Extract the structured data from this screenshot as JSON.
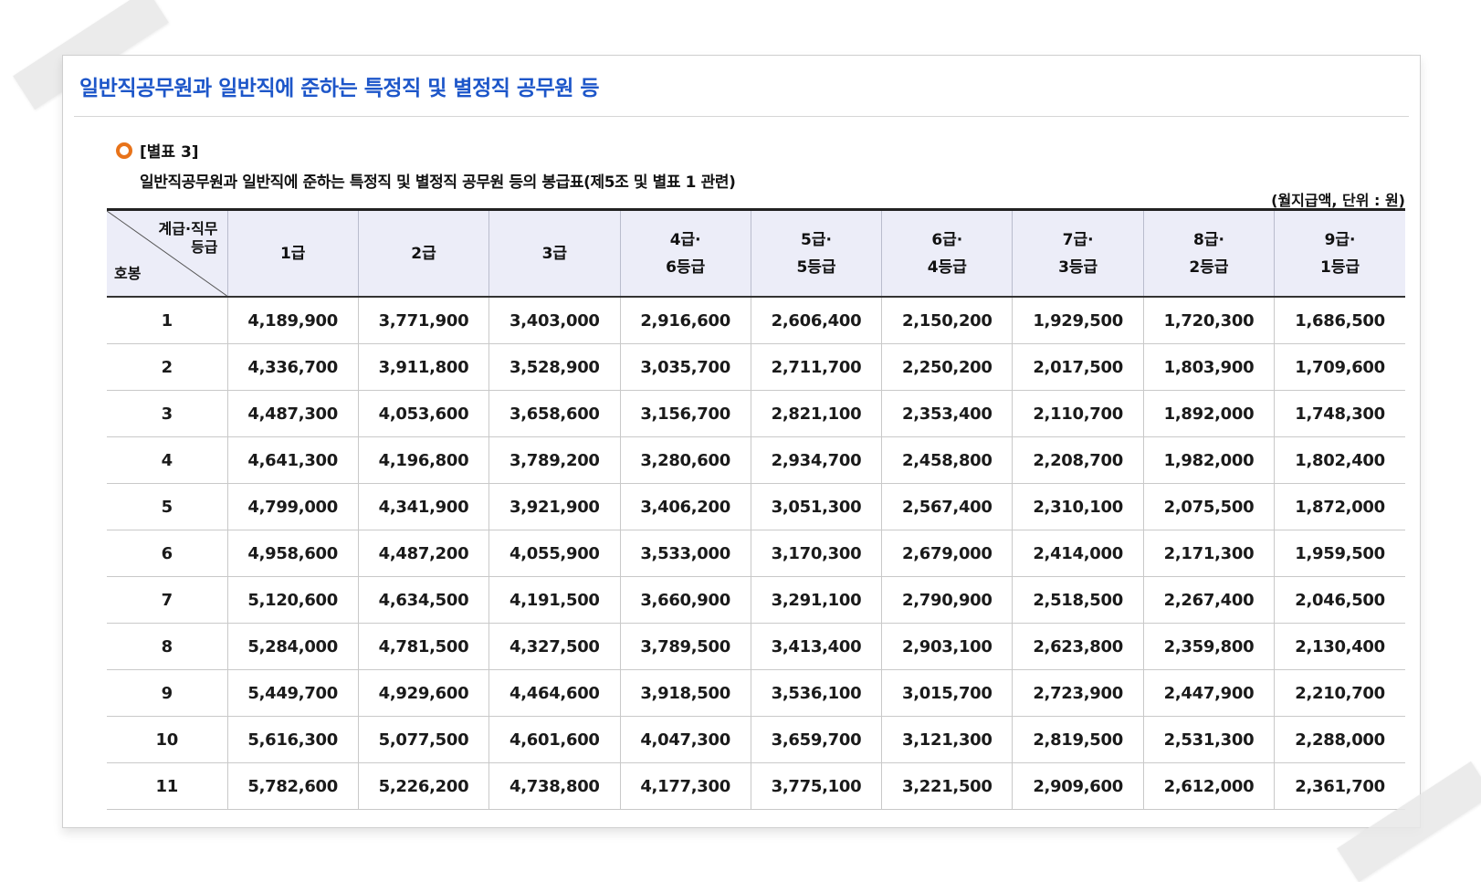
{
  "page_title": "일반직공무원과 일반직에 준하는 특정직 및 별정직 공무원 등",
  "table_label": "[별표 3]",
  "table_subtitle": "일반직공무원과 일반직에 준하는 특정직 및 별정직 공무원 등의 봉급표(제5조 및 별표 1 관련)",
  "unit_note": "(월지급액, 단위 : 원)",
  "corner": {
    "top_line1": "계급·직무",
    "top_line2": "등급",
    "bottom": "호봉"
  },
  "columns": [
    {
      "line1": "1급",
      "line2": ""
    },
    {
      "line1": "2급",
      "line2": ""
    },
    {
      "line1": "3급",
      "line2": ""
    },
    {
      "line1": "4급·",
      "line2": "6등급"
    },
    {
      "line1": "5급·",
      "line2": "5등급"
    },
    {
      "line1": "6급·",
      "line2": "4등급"
    },
    {
      "line1": "7급·",
      "line2": "3등급"
    },
    {
      "line1": "8급·",
      "line2": "2등급"
    },
    {
      "line1": "9급·",
      "line2": "1등급"
    }
  ],
  "rows": [
    {
      "step": "1",
      "values": [
        "4,189,900",
        "3,771,900",
        "3,403,000",
        "2,916,600",
        "2,606,400",
        "2,150,200",
        "1,929,500",
        "1,720,300",
        "1,686,500"
      ]
    },
    {
      "step": "2",
      "values": [
        "4,336,700",
        "3,911,800",
        "3,528,900",
        "3,035,700",
        "2,711,700",
        "2,250,200",
        "2,017,500",
        "1,803,900",
        "1,709,600"
      ]
    },
    {
      "step": "3",
      "values": [
        "4,487,300",
        "4,053,600",
        "3,658,600",
        "3,156,700",
        "2,821,100",
        "2,353,400",
        "2,110,700",
        "1,892,000",
        "1,748,300"
      ]
    },
    {
      "step": "4",
      "values": [
        "4,641,300",
        "4,196,800",
        "3,789,200",
        "3,280,600",
        "2,934,700",
        "2,458,800",
        "2,208,700",
        "1,982,000",
        "1,802,400"
      ]
    },
    {
      "step": "5",
      "values": [
        "4,799,000",
        "4,341,900",
        "3,921,900",
        "3,406,200",
        "3,051,300",
        "2,567,400",
        "2,310,100",
        "2,075,500",
        "1,872,000"
      ]
    },
    {
      "step": "6",
      "values": [
        "4,958,600",
        "4,487,200",
        "4,055,900",
        "3,533,000",
        "3,170,300",
        "2,679,000",
        "2,414,000",
        "2,171,300",
        "1,959,500"
      ]
    },
    {
      "step": "7",
      "values": [
        "5,120,600",
        "4,634,500",
        "4,191,500",
        "3,660,900",
        "3,291,100",
        "2,790,900",
        "2,518,500",
        "2,267,400",
        "2,046,500"
      ]
    },
    {
      "step": "8",
      "values": [
        "5,284,000",
        "4,781,500",
        "4,327,500",
        "3,789,500",
        "3,413,400",
        "2,903,100",
        "2,623,800",
        "2,359,800",
        "2,130,400"
      ]
    },
    {
      "step": "9",
      "values": [
        "5,449,700",
        "4,929,600",
        "4,464,600",
        "3,918,500",
        "3,536,100",
        "3,015,700",
        "2,723,900",
        "2,447,900",
        "2,210,700"
      ]
    },
    {
      "step": "10",
      "values": [
        "5,616,300",
        "5,077,500",
        "4,601,600",
        "4,047,300",
        "3,659,700",
        "3,121,300",
        "2,819,500",
        "2,531,300",
        "2,288,000"
      ]
    },
    {
      "step": "11",
      "values": [
        "5,782,600",
        "5,226,200",
        "4,738,800",
        "4,177,300",
        "3,775,100",
        "3,221,500",
        "2,909,600",
        "2,612,000",
        "2,361,700"
      ]
    }
  ]
}
